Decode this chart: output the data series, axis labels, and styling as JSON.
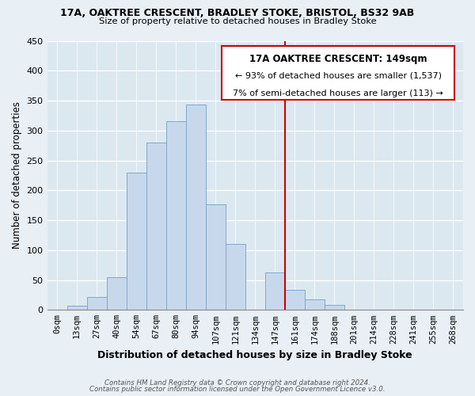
{
  "title1": "17A, OAKTREE CRESCENT, BRADLEY STOKE, BRISTOL, BS32 9AB",
  "title2": "Size of property relative to detached houses in Bradley Stoke",
  "xlabel": "Distribution of detached houses by size in Bradley Stoke",
  "ylabel": "Number of detached properties",
  "bar_labels": [
    "0sqm",
    "13sqm",
    "27sqm",
    "40sqm",
    "54sqm",
    "67sqm",
    "80sqm",
    "94sqm",
    "107sqm",
    "121sqm",
    "134sqm",
    "147sqm",
    "161sqm",
    "174sqm",
    "188sqm",
    "201sqm",
    "214sqm",
    "228sqm",
    "241sqm",
    "255sqm",
    "268sqm"
  ],
  "bar_values": [
    0,
    7,
    22,
    55,
    230,
    280,
    315,
    343,
    177,
    110,
    0,
    63,
    33,
    18,
    8,
    0,
    0,
    0,
    0,
    0,
    0
  ],
  "bar_color": "#c8d8ec",
  "bar_edge_color": "#7fa8cc",
  "vline_x": 11.5,
  "vline_color": "#cc0000",
  "annotation_title": "17A OAKTREE CRESCENT: 149sqm",
  "annotation_line1": "← 93% of detached houses are smaller (1,537)",
  "annotation_line2": "7% of semi-detached houses are larger (113) →",
  "ylim": [
    0,
    450
  ],
  "yticks": [
    0,
    50,
    100,
    150,
    200,
    250,
    300,
    350,
    400,
    450
  ],
  "background_color": "#dce8f0",
  "fig_background": "#e8eff5",
  "footer1": "Contains HM Land Registry data © Crown copyright and database right 2024.",
  "footer2": "Contains public sector information licensed under the Open Government Licence v3.0."
}
